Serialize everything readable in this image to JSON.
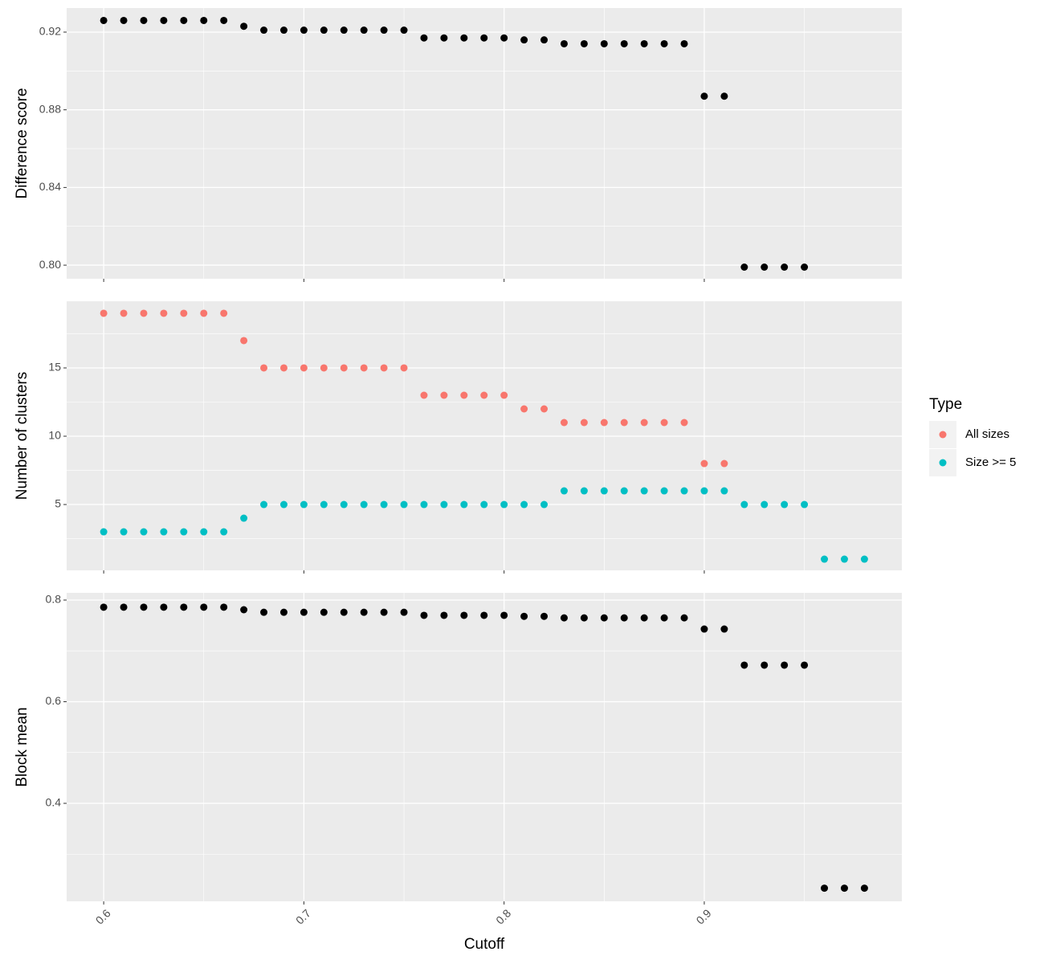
{
  "chart_data": [
    {
      "type": "scatter",
      "ylabel": "Difference score",
      "x": [
        0.6,
        0.61,
        0.62,
        0.63,
        0.64,
        0.65,
        0.66,
        0.67,
        0.68,
        0.69,
        0.7,
        0.71,
        0.72,
        0.73,
        0.74,
        0.75,
        0.76,
        0.77,
        0.78,
        0.79,
        0.8,
        0.81,
        0.82,
        0.83,
        0.84,
        0.85,
        0.86,
        0.87,
        0.88,
        0.89,
        0.9,
        0.91,
        0.92,
        0.93,
        0.94,
        0.95
      ],
      "series": [
        {
          "color": "#000000",
          "values": [
            0.926,
            0.926,
            0.926,
            0.926,
            0.926,
            0.926,
            0.926,
            0.923,
            0.921,
            0.921,
            0.921,
            0.921,
            0.921,
            0.921,
            0.921,
            0.921,
            0.917,
            0.917,
            0.917,
            0.917,
            0.917,
            0.916,
            0.916,
            0.914,
            0.914,
            0.914,
            0.914,
            0.914,
            0.914,
            0.914,
            0.887,
            0.887,
            0.799,
            0.799,
            0.799,
            0.799
          ]
        }
      ],
      "xlim": [
        0.5815,
        0.9987
      ],
      "ylim": [
        0.793,
        0.9324
      ],
      "yticks": [
        {
          "value": 0.8,
          "label": "0.80"
        },
        0.84,
        0.88,
        0.92
      ],
      "grid": true
    },
    {
      "type": "scatter",
      "ylabel": "Number of clusters",
      "legend_title": "Type",
      "x": [
        0.6,
        0.61,
        0.62,
        0.63,
        0.64,
        0.65,
        0.66,
        0.67,
        0.68,
        0.69,
        0.7,
        0.71,
        0.72,
        0.73,
        0.74,
        0.75,
        0.76,
        0.77,
        0.78,
        0.79,
        0.8,
        0.81,
        0.82,
        0.83,
        0.84,
        0.85,
        0.86,
        0.87,
        0.88,
        0.89,
        0.9,
        0.91,
        0.92,
        0.93,
        0.94,
        0.95,
        0.96,
        0.97,
        0.98
      ],
      "series": [
        {
          "name": "All sizes",
          "color": "#F8766D",
          "values": [
            19,
            19,
            19,
            19,
            19,
            19,
            19,
            17,
            15,
            15,
            15,
            15,
            15,
            15,
            15,
            15,
            13,
            13,
            13,
            13,
            13,
            12,
            12,
            11,
            11,
            11,
            11,
            11,
            11,
            11,
            8,
            8,
            null,
            null,
            null,
            null,
            null,
            null,
            null
          ]
        },
        {
          "name": "Size >= 5",
          "color": "#00BFC4",
          "values": [
            3,
            3,
            3,
            3,
            3,
            3,
            3,
            4,
            5,
            5,
            5,
            5,
            5,
            5,
            5,
            5,
            5,
            5,
            5,
            5,
            5,
            5,
            5,
            6,
            6,
            6,
            6,
            6,
            6,
            6,
            6,
            6,
            5,
            5,
            5,
            5,
            1,
            1,
            1
          ]
        }
      ],
      "xlim": [
        0.5815,
        0.9987
      ],
      "ylim": [
        0.18,
        19.88
      ],
      "yticks": [
        5,
        10,
        15
      ],
      "grid": true
    },
    {
      "type": "scatter",
      "ylabel": "Block mean",
      "xlabel": "Cutoff",
      "x": [
        0.6,
        0.61,
        0.62,
        0.63,
        0.64,
        0.65,
        0.66,
        0.67,
        0.68,
        0.69,
        0.7,
        0.71,
        0.72,
        0.73,
        0.74,
        0.75,
        0.76,
        0.77,
        0.78,
        0.79,
        0.8,
        0.81,
        0.82,
        0.83,
        0.84,
        0.85,
        0.86,
        0.87,
        0.88,
        0.89,
        0.9,
        0.91,
        0.92,
        0.93,
        0.94,
        0.95,
        0.96,
        0.97,
        0.98
      ],
      "series": [
        {
          "color": "#000000",
          "values": [
            0.786,
            0.786,
            0.786,
            0.786,
            0.786,
            0.786,
            0.786,
            0.781,
            0.776,
            0.776,
            0.776,
            0.776,
            0.776,
            0.776,
            0.776,
            0.776,
            0.77,
            0.77,
            0.77,
            0.77,
            0.77,
            0.768,
            0.768,
            0.765,
            0.765,
            0.765,
            0.765,
            0.765,
            0.765,
            0.765,
            0.743,
            0.743,
            0.672,
            0.672,
            0.672,
            0.672,
            0.233,
            0.233,
            0.233
          ]
        }
      ],
      "xlim": [
        0.5815,
        0.9987
      ],
      "ylim": [
        0.2071,
        0.8142
      ],
      "yticks": [
        0.4,
        0.6,
        0.8
      ],
      "xticks": [
        0.6,
        0.7,
        0.8,
        0.9
      ],
      "grid": true
    }
  ]
}
